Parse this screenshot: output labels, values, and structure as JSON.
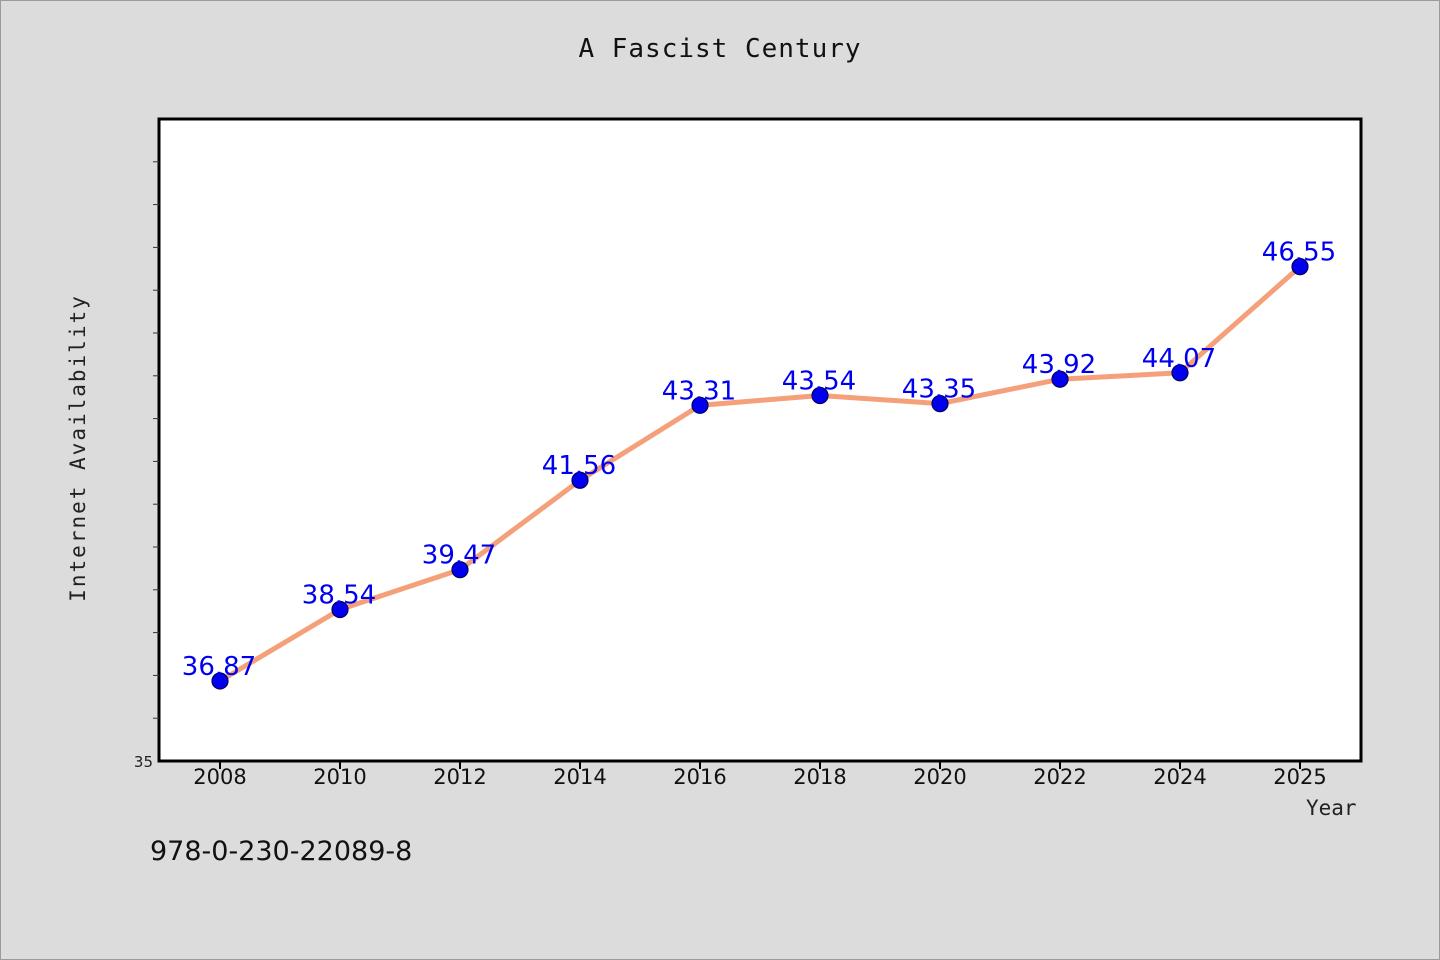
{
  "chart_data": {
    "type": "line",
    "title": "A Fascist Century",
    "xlabel": "Year",
    "ylabel": "Internet Availability",
    "x": [
      2008,
      2010,
      2012,
      2014,
      2016,
      2018,
      2020,
      2022,
      2024,
      2025
    ],
    "x_tick_labels": [
      "2008",
      "2010",
      "2012",
      "2014",
      "2016",
      "2018",
      "2020",
      "2022",
      "2024",
      "2025"
    ],
    "series": [
      {
        "values": [
          36.87,
          38.54,
          39.47,
          41.56,
          43.31,
          43.54,
          43.35,
          43.92,
          44.07,
          46.55
        ],
        "data_labels": [
          "36.87",
          "38.54",
          "39.47",
          "41.56",
          "43.31",
          "43.54",
          "43.35",
          "43.92",
          "44.07",
          "46.55"
        ]
      }
    ],
    "y_tick_labels": [
      "35"
    ],
    "ylim": [
      35,
      50
    ],
    "grid": false,
    "legend": "none",
    "colors": {
      "line": "#f4a07a",
      "marker": "#0000ee",
      "label": "#0000ee",
      "plot_bg": "#ffffff",
      "page_bg": "#dcdcdc"
    }
  },
  "footer": {
    "isbn": "978-0-230-22089-8"
  }
}
